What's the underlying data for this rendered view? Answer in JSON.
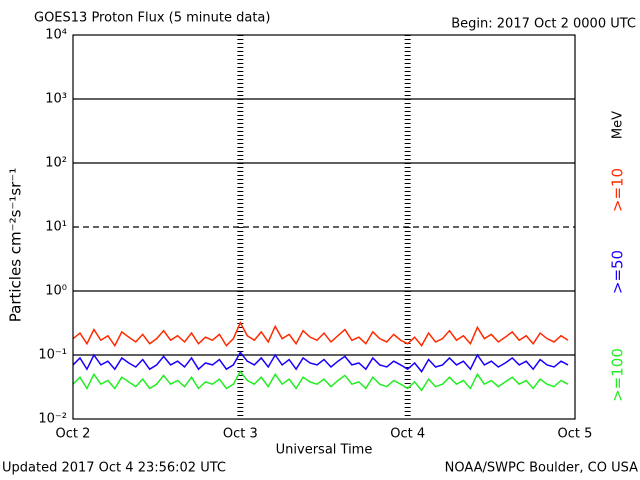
{
  "chart_data": {
    "type": "line",
    "title": "GOES13 Proton Flux (5 minute data)",
    "subtitle": "Begin: 2017 Oct 2 0000 UTC",
    "x_label": "Universal Time",
    "y_label": "Particles cm⁻²s⁻¹sr⁻¹",
    "legend_unit": "MeV",
    "footer_left": "Updated 2017 Oct  4 23:56:02 UTC",
    "footer_right": "NOAA/SWPC Boulder, CO USA",
    "log_scale": true,
    "grid": true,
    "dashed_gridlines": [
      10
    ],
    "legend_position": "right",
    "xlim": [
      0,
      72
    ],
    "xticks": [
      {
        "value": 0,
        "label": "Oct 2"
      },
      {
        "value": 24,
        "label": "Oct 3"
      },
      {
        "value": 48,
        "label": "Oct 4"
      },
      {
        "value": 72,
        "label": "Oct 5"
      }
    ],
    "ylim": [
      0.01,
      10000
    ],
    "yticks": [
      {
        "value": 0.01,
        "label": "10⁻²"
      },
      {
        "value": 0.1,
        "label": "10⁻¹"
      },
      {
        "value": 1,
        "label": "10⁰"
      },
      {
        "value": 10,
        "label": "10¹"
      },
      {
        "value": 100,
        "label": "10²"
      },
      {
        "value": 1000,
        "label": "10³"
      },
      {
        "value": 10000,
        "label": "10⁴"
      }
    ],
    "x": [
      0,
      1,
      2,
      3,
      4,
      5,
      6,
      7,
      8,
      9,
      10,
      11,
      12,
      13,
      14,
      15,
      16,
      17,
      18,
      19,
      20,
      21,
      22,
      23,
      24,
      25,
      26,
      27,
      28,
      29,
      30,
      31,
      32,
      33,
      34,
      35,
      36,
      37,
      38,
      39,
      40,
      41,
      42,
      43,
      44,
      45,
      46,
      47,
      48,
      49,
      50,
      51,
      52,
      53,
      54,
      55,
      56,
      57,
      58,
      59,
      60,
      61,
      62,
      63,
      64,
      65,
      66,
      67,
      68,
      69,
      70,
      71
    ],
    "series": [
      {
        "name": ">=10",
        "color": "#ff2a00",
        "values": [
          0.18,
          0.22,
          0.15,
          0.25,
          0.17,
          0.2,
          0.14,
          0.23,
          0.19,
          0.16,
          0.21,
          0.15,
          0.18,
          0.24,
          0.17,
          0.2,
          0.16,
          0.22,
          0.15,
          0.19,
          0.17,
          0.21,
          0.14,
          0.18,
          0.32,
          0.2,
          0.17,
          0.23,
          0.16,
          0.28,
          0.18,
          0.21,
          0.15,
          0.24,
          0.19,
          0.17,
          0.22,
          0.16,
          0.2,
          0.25,
          0.17,
          0.19,
          0.15,
          0.23,
          0.18,
          0.16,
          0.21,
          0.17,
          0.15,
          0.19,
          0.14,
          0.22,
          0.16,
          0.18,
          0.24,
          0.17,
          0.2,
          0.15,
          0.27,
          0.18,
          0.21,
          0.16,
          0.19,
          0.23,
          0.17,
          0.2,
          0.15,
          0.22,
          0.18,
          0.16,
          0.2,
          0.17
        ]
      },
      {
        "name": ">=50",
        "color": "#1a00ff",
        "values": [
          0.07,
          0.09,
          0.06,
          0.1,
          0.07,
          0.08,
          0.06,
          0.09,
          0.075,
          0.065,
          0.085,
          0.06,
          0.07,
          0.095,
          0.07,
          0.08,
          0.065,
          0.09,
          0.06,
          0.075,
          0.07,
          0.085,
          0.06,
          0.07,
          0.11,
          0.08,
          0.07,
          0.09,
          0.065,
          0.1,
          0.07,
          0.085,
          0.06,
          0.09,
          0.075,
          0.07,
          0.085,
          0.065,
          0.08,
          0.095,
          0.07,
          0.075,
          0.06,
          0.09,
          0.07,
          0.065,
          0.08,
          0.07,
          0.06,
          0.075,
          0.055,
          0.085,
          0.065,
          0.07,
          0.09,
          0.07,
          0.08,
          0.06,
          0.1,
          0.07,
          0.08,
          0.065,
          0.075,
          0.09,
          0.07,
          0.08,
          0.06,
          0.085,
          0.07,
          0.065,
          0.08,
          0.07
        ]
      },
      {
        "name": ">=100",
        "color": "#22ee22",
        "values": [
          0.035,
          0.045,
          0.03,
          0.05,
          0.035,
          0.04,
          0.03,
          0.045,
          0.038,
          0.032,
          0.042,
          0.03,
          0.035,
          0.048,
          0.035,
          0.04,
          0.032,
          0.045,
          0.03,
          0.038,
          0.035,
          0.042,
          0.03,
          0.035,
          0.055,
          0.04,
          0.035,
          0.045,
          0.032,
          0.05,
          0.035,
          0.042,
          0.03,
          0.045,
          0.038,
          0.035,
          0.042,
          0.032,
          0.04,
          0.048,
          0.035,
          0.038,
          0.03,
          0.045,
          0.035,
          0.032,
          0.04,
          0.035,
          0.03,
          0.038,
          0.028,
          0.042,
          0.032,
          0.035,
          0.045,
          0.035,
          0.04,
          0.03,
          0.05,
          0.035,
          0.04,
          0.032,
          0.038,
          0.045,
          0.035,
          0.04,
          0.03,
          0.042,
          0.035,
          0.032,
          0.04,
          0.035
        ]
      }
    ]
  }
}
